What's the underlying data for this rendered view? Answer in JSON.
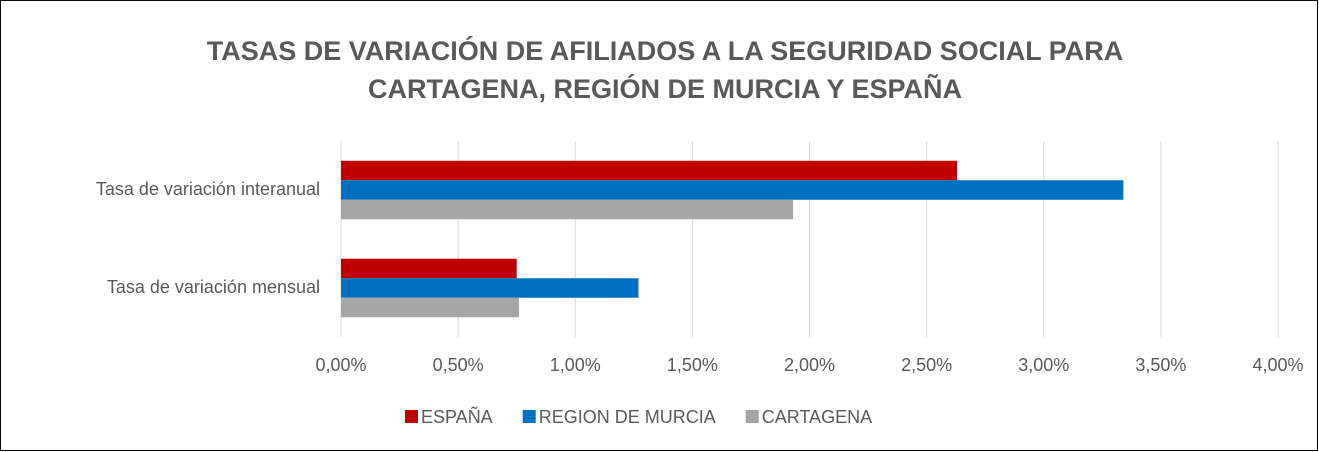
{
  "chart_data": {
    "type": "hbar",
    "title": "TASAS DE VARIACIÓN DE AFILIADOS A LA SEGURIDAD SOCIAL PARA CARTAGENA, REGIÓN DE MURCIA Y ESPAÑA",
    "categories": [
      "Tasa de variación interanual",
      "Tasa de variación mensual"
    ],
    "series": [
      {
        "name": "ESPAÑA",
        "color": "#c00000",
        "values": [
          2.63,
          0.75
        ]
      },
      {
        "name": "REGION DE MURCIA",
        "color": "#0070c0",
        "values": [
          3.34,
          1.27
        ]
      },
      {
        "name": "CARTAGENA",
        "color": "#a5a5a5",
        "values": [
          1.93,
          0.76
        ]
      }
    ],
    "xlim": [
      0,
      4
    ],
    "xticks": [
      {
        "value": 0,
        "label": "0,00%"
      },
      {
        "value": 0.5,
        "label": "0,50%"
      },
      {
        "value": 1,
        "label": "1,00%"
      },
      {
        "value": 1.5,
        "label": "1,50%"
      },
      {
        "value": 2,
        "label": "2,00%"
      },
      {
        "value": 2.5,
        "label": "2,50%"
      },
      {
        "value": 3,
        "label": "3,00%"
      },
      {
        "value": 3.5,
        "label": "3,50%"
      },
      {
        "value": 4,
        "label": "4,00%"
      }
    ],
    "grid": true,
    "legend": "bottom"
  }
}
